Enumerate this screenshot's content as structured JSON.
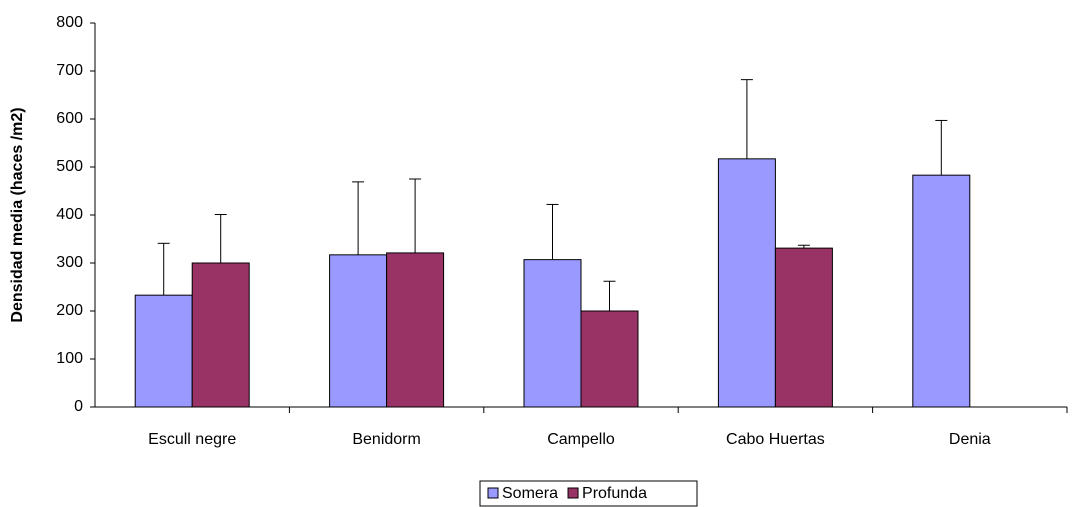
{
  "chart_data": {
    "type": "bar",
    "y_label": "Densidad media (haces /m2)",
    "categories": [
      "Escull negre",
      "Benidorm",
      "Campello",
      "Cabo Huertas",
      "Denia"
    ],
    "series": [
      {
        "name": "Somera",
        "color": "#9999ff",
        "values": [
          233,
          317,
          307,
          517,
          483
        ],
        "errors": [
          108,
          152,
          115,
          165,
          114
        ]
      },
      {
        "name": "Profunda",
        "color": "#993366",
        "values": [
          300,
          321,
          200,
          331,
          null
        ],
        "errors": [
          101,
          154,
          62,
          6,
          null
        ]
      }
    ],
    "ylim": [
      0,
      800
    ],
    "yticks": [
      0,
      100,
      200,
      300,
      400,
      500,
      600,
      700,
      800
    ],
    "legend": "bottom"
  }
}
